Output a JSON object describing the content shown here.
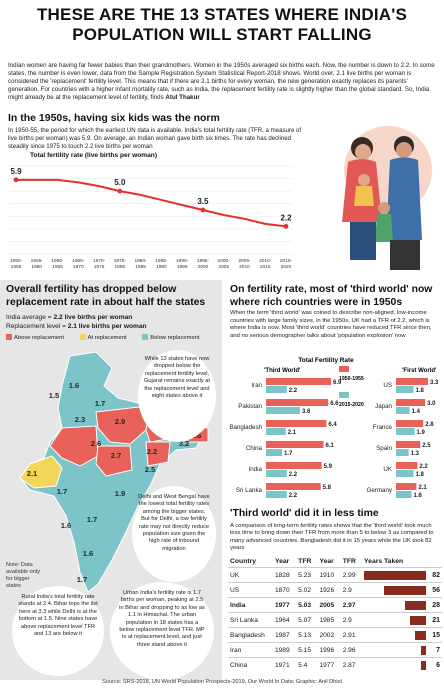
{
  "headline": {
    "line1": "THESE ARE THE 13 STATES WHERE INDIA'S",
    "line2": "POPULATION WILL START FALLING"
  },
  "intro": {
    "text": "Indian women are having far fewer babies than their grandmothers. Women in the 1950s averaged six births each. Now, the number is down to 2.2. In some states, the number is even lower, data from the Sample Registration System Statistical Report-2018 shows. World over, 2.1 live births per woman is considered the 'replacement' fertility level. This means that if there are 2.1 births for every woman, the new generation exactly replaces its parents' generation. For countries with a higher infant mortality rate, such as India, the replacement fertility rate is slightly higher than the global standard. So, India might already be at the replacement level of fertility, finds",
    "author": "Atul Thakur"
  },
  "section1": {
    "title": "In the 1950s, having six kids was the norm",
    "desc": "In 1950-55, the period for which the earliest UN data is available, India's total fertility rate (TFR, a measure of live births per woman) was 5.9. On average, an Indian woman gave birth six times. The rate has declined steadily since 1975 to touch 2.2 live births per woman"
  },
  "chart_data": [
    {
      "type": "line",
      "title": "Total fertility rate (live births per woman)",
      "categories": [
        "1950-1955",
        "1955-1960",
        "1960-1965",
        "1965-1970",
        "1970-1975",
        "1975-1980",
        "1980-1985",
        "1985-1990",
        "1990-1995",
        "1995-2000",
        "2000-2005",
        "2005-2010",
        "2010-2015",
        "2015-2020"
      ],
      "values": [
        5.9,
        5.9,
        5.9,
        5.7,
        5.4,
        5.0,
        4.7,
        4.3,
        3.9,
        3.5,
        3.1,
        2.8,
        2.4,
        2.2
      ],
      "data_labels": [
        {
          "index": 0,
          "text": "5.9"
        },
        {
          "index": 5,
          "text": "5.0"
        },
        {
          "index": 9,
          "text": "3.5"
        },
        {
          "index": 13,
          "text": "2.2"
        }
      ],
      "ylim": [
        0,
        7
      ],
      "color": "#e3312b"
    },
    {
      "type": "bar",
      "title": "Total Fertility Rate",
      "subtitle": "'Third World'",
      "categories": [
        "Iran",
        "Pakistan",
        "Bangladesh",
        "China",
        "India",
        "Sri Lanka"
      ],
      "series": [
        {
          "name": "1950-1955",
          "values": [
            6.9,
            6.6,
            6.4,
            6.1,
            5.9,
            5.8
          ]
        },
        {
          "name": "2015-2020",
          "values": [
            2.2,
            3.6,
            2.1,
            1.7,
            2.2,
            2.2
          ]
        }
      ],
      "xlim": [
        0,
        7
      ]
    },
    {
      "type": "bar",
      "subtitle": "'First World'",
      "categories": [
        "US",
        "Japan",
        "France",
        "Spain",
        "UK",
        "Germany"
      ],
      "series": [
        {
          "name": "1950-1955",
          "values": [
            3.3,
            3.0,
            2.8,
            2.5,
            2.2,
            2.1
          ]
        },
        {
          "name": "2015-2020",
          "values": [
            1.8,
            1.4,
            1.9,
            1.3,
            1.8,
            1.6
          ]
        }
      ],
      "xlim": [
        0,
        3.5
      ]
    },
    {
      "type": "table",
      "columns": [
        "Country",
        "Year",
        "TFR",
        "Year",
        "TFR",
        "Years Taken"
      ],
      "rows": [
        [
          "UK",
          "1828",
          "5.23",
          "1910",
          "2.99",
          "82"
        ],
        [
          "US",
          "1870",
          "5.02",
          "1926",
          "2.9",
          "56"
        ],
        [
          "India",
          "1977",
          "5.03",
          "2005",
          "2.97",
          "28"
        ],
        [
          "Sri Lanka",
          "1964",
          "5.07",
          "1985",
          "2.9",
          "21"
        ],
        [
          "Bangladesh",
          "1987",
          "5.13",
          "2002",
          "2.91",
          "15"
        ],
        [
          "Iran",
          "1989",
          "5.15",
          "1996",
          "2.96",
          "7"
        ],
        [
          "China",
          "1971",
          "5.4",
          "1977",
          "2.87",
          "6"
        ]
      ],
      "years_taken": [
        82,
        56,
        28,
        21,
        15,
        7,
        6
      ]
    }
  ],
  "left_panel": {
    "title": "Overall fertility has dropped below replacement rate in about half the states",
    "stat1_label": "India average = ",
    "stat1_value": "2.2 live births per woman",
    "stat2_label": "Replacement level = ",
    "stat2_value": "2.1 live births per woman",
    "legend": [
      {
        "label": "Above replacement",
        "color": "#e8625a"
      },
      {
        "label": "At replacement",
        "color": "#f2d65a"
      },
      {
        "label": "Below replacement",
        "color": "#7cc4c8"
      }
    ],
    "bubble1": "While 13 states have now dropped below the replacement fertility level, Gujarat remains exactly at the replacement level and eight states above it",
    "bubble2": "Delhi and West Bengal have the lowest total fertility rates among the bigger states. But for Delhi, a low fertility rate may not directly reduce population size given the high rate of inbound migration",
    "bubble3": "Rural India's total fertility rate stands at 2.4. Bihar tops the list here at 3.3 while Delhi is at the bottom at 1.5. Nine states have above replacement level TFR and 13 are below it",
    "bubble4": "Urban India's fertility rate is 1.7 births per woman, peaking at 2.5 in Bihar and dropping to as low as 1.1 in Himachal. The urban population in 18 states has a below replacement level TFR. MP is at replacement level, and just three stand above it",
    "note": "Note: Data available only for bigger states",
    "map_values": [
      "1.6",
      "1.5",
      "1.7",
      "2.3",
      "2.9",
      "3.2",
      "2.6",
      "1.6",
      "2.1",
      "2.7",
      "1.7",
      "2.2",
      "2.5",
      "1.9",
      "1.7",
      "1.6",
      "1.6",
      "1.7",
      "3.2"
    ],
    "palette": {
      "above": "#e8625a",
      "at": "#f2d65a",
      "below": "#7cc4c8"
    }
  },
  "right_panel": {
    "title": "On fertility rate, most of 'third world' now where rich countries were in 1950s",
    "desc": "When the term 'third world' was coined to describe non-aligned, low-income countries with large family sizes, in the 1950s, UK had a TFR of 2.2, which is where India is now. Most 'third world' countries have reduced TFR since then, and no serious demographer talks about 'population explosion' now",
    "legend_1950": "1950-1955",
    "legend_2015": "2015-2020",
    "color_1950": "#e8625a",
    "color_2015": "#7cc4c8",
    "title2": "'Third world' did it in less time",
    "desc2": "A comparison of long-term fertility rates shows that the 'third world' took much less time to bring down their TFR from more than 5 to below 3 as compared to many advanced countries. Bangladesh did it in 15 years while the UK took 82 years",
    "years_color": "#8a2b1f"
  },
  "source": "Source: SRS-2018, UN World Population Prospects-2019, Our World In Data; Graphic: Anil Dhiol"
}
